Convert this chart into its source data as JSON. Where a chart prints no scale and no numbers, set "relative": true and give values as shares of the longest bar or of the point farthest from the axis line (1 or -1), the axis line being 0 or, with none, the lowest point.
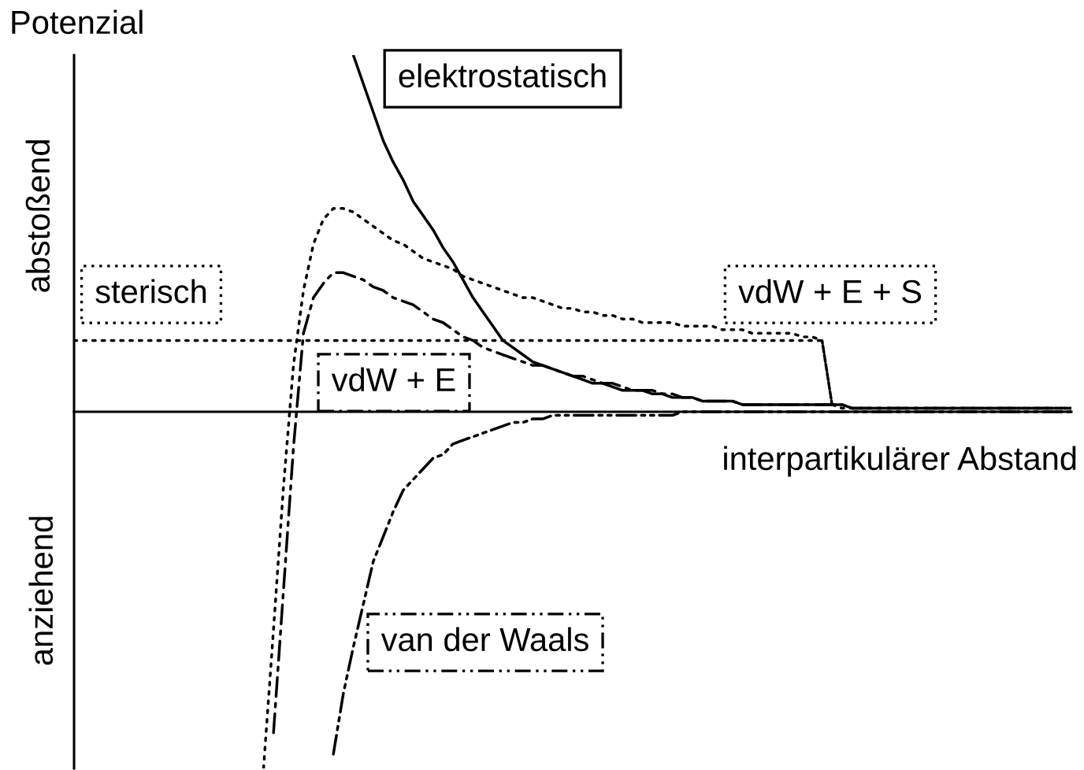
{
  "chart_data": {
    "type": "line",
    "relative": true,
    "xlabel": "interpartikulärer Abstand",
    "ylabel": "Potenzial",
    "annotations": [
      "abstoßend",
      "anziehend"
    ],
    "categories": [
      null,
      null,
      null,
      null,
      null,
      null,
      null,
      null,
      null,
      null,
      null,
      null,
      null,
      null,
      null,
      null,
      null,
      null,
      null,
      null,
      null,
      null,
      null,
      null,
      null,
      null,
      null,
      null,
      null,
      null,
      null,
      null,
      null,
      null,
      null,
      null,
      null,
      null,
      null,
      null,
      null,
      null,
      null,
      null,
      null,
      null,
      null,
      null,
      null,
      null,
      null,
      null,
      null,
      null,
      null,
      null,
      null,
      null,
      null,
      null,
      null,
      null,
      null,
      null,
      null,
      null,
      null,
      null,
      null,
      null,
      null,
      null,
      null,
      null,
      null,
      null,
      null,
      null,
      null,
      null,
      null,
      null,
      null,
      null,
      null,
      null,
      null,
      null,
      null,
      null,
      null,
      null,
      null,
      null,
      null,
      null,
      null,
      null,
      null,
      null,
      null
    ],
    "series": [
      {
        "name": "elektrostatisch",
        "color": "#000000",
        "line_style": "solid",
        "values": [
          null,
          null,
          null,
          null,
          null,
          null,
          null,
          null,
          null,
          null,
          null,
          null,
          null,
          null,
          null,
          null,
          null,
          null,
          null,
          null,
          null,
          null,
          null,
          null,
          null,
          null,
          null,
          null,
          1.0,
          0.92,
          0.84,
          0.76,
          0.7,
          0.65,
          0.59,
          0.55,
          0.51,
          0.46,
          0.42,
          0.37,
          0.32,
          0.28,
          0.24,
          0.2,
          0.18,
          0.16,
          0.14,
          0.13,
          0.12,
          0.11,
          0.1,
          0.09,
          0.08,
          0.08,
          0.07,
          0.06,
          0.06,
          0.06,
          0.05,
          0.05,
          0.04,
          0.04,
          0.04,
          0.03,
          0.03,
          0.03,
          0.03,
          0.02,
          0.02,
          0.02,
          0.02,
          0.02,
          0.02,
          0.02,
          0.02,
          0.02,
          0.02,
          0.02,
          0.01,
          0.01,
          0.01,
          0.01,
          0.01,
          0.01,
          0.01,
          0.01,
          0.01,
          0.01,
          0.01,
          0.01,
          0.01,
          0.01,
          0.01,
          0.01,
          0.01,
          0.01,
          0.01,
          0.01,
          0.01,
          0.01,
          0.01
        ]
      },
      {
        "name": "sterisch",
        "color": "#000000",
        "line_style": "dotted",
        "values": [
          0.2,
          0.2,
          0.2,
          0.2,
          0.2,
          0.2,
          0.2,
          0.2,
          0.2,
          0.2,
          0.2,
          0.2,
          0.2,
          0.2,
          0.2,
          0.2,
          0.2,
          0.2,
          0.2,
          0.2,
          0.2,
          0.2,
          0.2,
          0.2,
          0.2,
          0.2,
          0.2,
          0.2,
          0.2,
          0.2,
          0.2,
          0.2,
          0.2,
          0.2,
          0.2,
          0.2,
          0.2,
          0.2,
          0.2,
          0.2,
          0.2,
          0.2,
          0.2,
          0.2,
          0.2,
          0.2,
          0.2,
          0.2,
          0.2,
          0.2,
          0.2,
          0.2,
          0.2,
          0.2,
          0.2,
          0.2,
          0.2,
          0.2,
          0.2,
          0.2,
          0.2,
          0.2,
          0.2,
          0.2,
          0.2,
          0.2,
          0.2,
          0.2,
          0.2,
          0.2,
          0.2,
          0.2,
          0.2,
          0.2,
          0.2,
          0.2,
          0.02,
          null,
          null,
          null,
          null,
          null,
          null,
          null,
          null,
          null,
          null,
          null,
          null,
          null,
          null,
          null,
          null,
          null,
          null,
          null,
          null,
          null,
          null,
          null,
          null
        ]
      },
      {
        "name": "vdW + E + S",
        "color": "#000000",
        "line_style": "dotted",
        "values": [
          null,
          null,
          null,
          null,
          null,
          null,
          null,
          null,
          null,
          null,
          null,
          null,
          null,
          null,
          null,
          null,
          null,
          null,
          null,
          -1.0,
          -0.61,
          -0.21,
          0.13,
          0.34,
          0.47,
          0.54,
          0.57,
          0.57,
          0.56,
          0.54,
          0.52,
          0.5,
          0.48,
          0.47,
          0.45,
          0.43,
          0.42,
          0.41,
          0.4,
          0.38,
          0.37,
          0.36,
          0.35,
          0.34,
          0.33,
          0.32,
          0.32,
          0.31,
          0.3,
          0.29,
          0.29,
          0.28,
          0.28,
          0.27,
          0.27,
          0.26,
          0.26,
          0.25,
          0.25,
          0.25,
          0.25,
          0.24,
          0.24,
          0.24,
          0.24,
          0.23,
          0.23,
          0.23,
          0.22,
          0.22,
          0.22,
          0.22,
          0.22,
          0.21,
          0.21,
          0.2,
          0.02,
          0.01,
          0.01,
          0.01,
          0.01,
          0.01,
          0.01,
          0.01,
          0.01,
          0.01,
          0.01,
          0.01,
          0.01,
          0.01,
          0.01,
          0.01,
          0.01,
          0.01,
          0.01,
          0.01,
          0.01,
          0.01,
          0.01,
          0.01,
          0.01
        ]
      },
      {
        "name": "vdW + E",
        "color": "#000000",
        "line_style": "dashdot",
        "values": [
          null,
          null,
          null,
          null,
          null,
          null,
          null,
          null,
          null,
          null,
          null,
          null,
          null,
          null,
          null,
          null,
          null,
          null,
          null,
          null,
          -0.9,
          -0.5,
          -0.1,
          0.22,
          0.32,
          0.36,
          0.39,
          0.39,
          0.38,
          0.37,
          0.35,
          0.34,
          0.32,
          0.31,
          0.3,
          0.28,
          0.26,
          0.25,
          0.23,
          0.21,
          0.2,
          0.18,
          0.17,
          0.16,
          0.15,
          0.14,
          0.13,
          0.13,
          0.12,
          0.11,
          0.1,
          0.1,
          0.09,
          0.08,
          0.08,
          0.07,
          0.06,
          0.06,
          0.06,
          0.05,
          0.05,
          0.04,
          0.04,
          0.03,
          0.03,
          0.03,
          0.03,
          0.02,
          0.02,
          0.02,
          0.02,
          0.02,
          0.02,
          0.02,
          0.02,
          0.02,
          0.02,
          0.02,
          0.01,
          0.01,
          0.01,
          0.01,
          0.01,
          0.01,
          0.01,
          0.01,
          0.01,
          0.01,
          0.01,
          0.01,
          0.01,
          0.01,
          0.01,
          0.01,
          0.01,
          0.01,
          0.01,
          0.01,
          0.01,
          0.01,
          0.01
        ]
      },
      {
        "name": "van der Waals",
        "color": "#000000",
        "line_style": "dashdotdot",
        "values": [
          null,
          null,
          null,
          null,
          null,
          null,
          null,
          null,
          null,
          null,
          null,
          null,
          null,
          null,
          null,
          null,
          null,
          null,
          null,
          null,
          null,
          null,
          null,
          null,
          null,
          null,
          -0.96,
          -0.79,
          -0.66,
          -0.54,
          -0.42,
          -0.35,
          -0.28,
          -0.22,
          -0.19,
          -0.16,
          -0.13,
          -0.12,
          -0.09,
          -0.08,
          -0.07,
          -0.06,
          -0.05,
          -0.04,
          -0.03,
          -0.03,
          -0.02,
          -0.02,
          -0.01,
          -0.01,
          -0.01,
          -0.01,
          -0.01,
          -0.01,
          -0.01,
          -0.01,
          -0.01,
          -0.01,
          -0.01,
          -0.01,
          -0.01,
          0,
          0,
          0,
          0,
          0,
          0,
          0,
          0,
          0,
          0,
          0,
          0,
          0,
          0,
          0,
          0,
          0,
          0,
          0,
          0,
          0,
          0,
          0,
          0,
          0,
          0,
          0,
          0,
          0,
          0,
          0,
          0,
          0,
          0,
          0,
          0,
          0,
          0,
          0,
          0
        ]
      }
    ]
  }
}
